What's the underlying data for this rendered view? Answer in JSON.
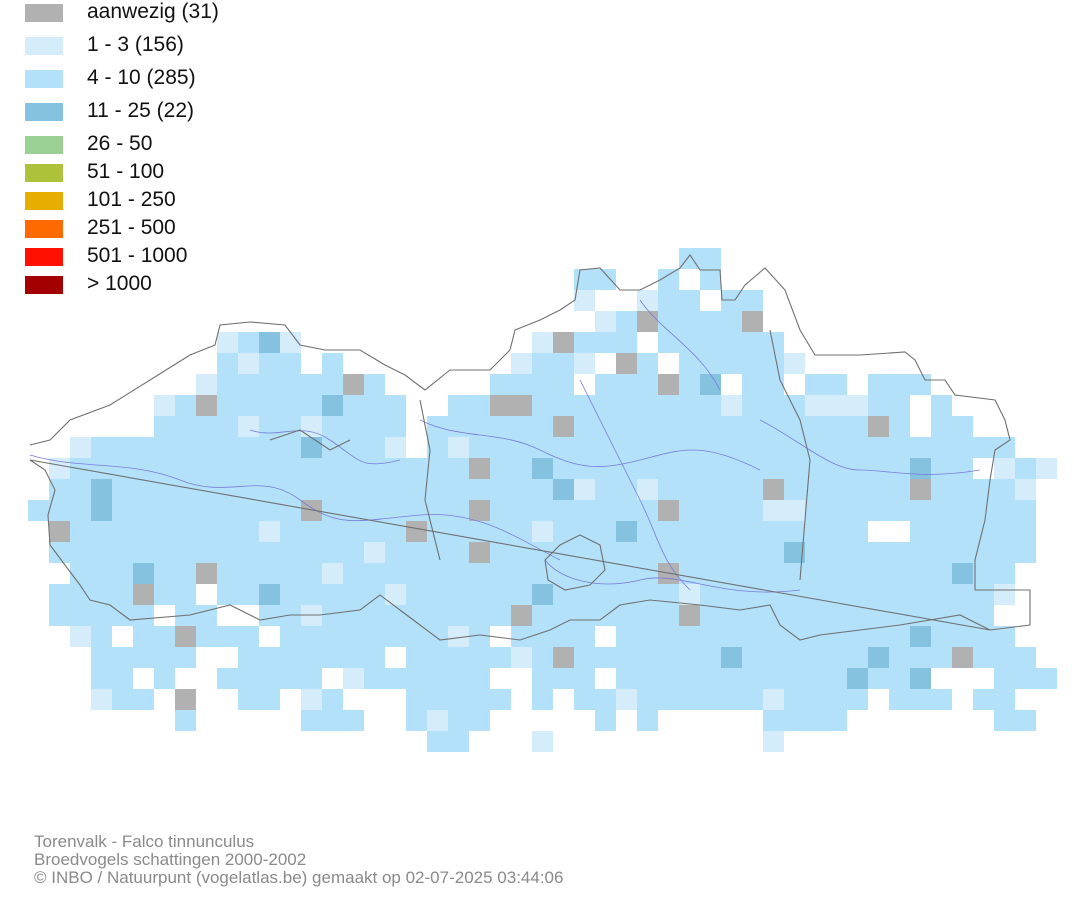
{
  "legend": {
    "items": [
      {
        "label": "aanwezig (31)",
        "color": "#b1b1b1"
      },
      {
        "label": "1 - 3 (156)",
        "color": "#d5ecfa"
      },
      {
        "label": "4 - 10 (285)",
        "color": "#b3e1fa"
      },
      {
        "label": "11 - 25 (22)",
        "color": "#84c2e0"
      },
      {
        "label": "26 - 50",
        "color": "#9bd094"
      },
      {
        "label": "51 - 100",
        "color": "#adc13a"
      },
      {
        "label": "101 - 250",
        "color": "#e6ae00"
      },
      {
        "label": "251 - 500",
        "color": "#ff6a00"
      },
      {
        "label": "501 - 1000",
        "color": "#ff1000"
      },
      {
        "label": "> 1000",
        "color": "#a30000"
      }
    ]
  },
  "credits": {
    "line1": "Torenvalk - Falco tinnunculus",
    "line2": "Broedvogels schattingen 2000-2002",
    "line3": "© INBO / Natuurpunt (vogelatlas.be) gemaakt op 02-07-2025 03:44:06"
  },
  "map": {
    "border_color": "#707070",
    "river_color": "#7b7bdc"
  }
}
